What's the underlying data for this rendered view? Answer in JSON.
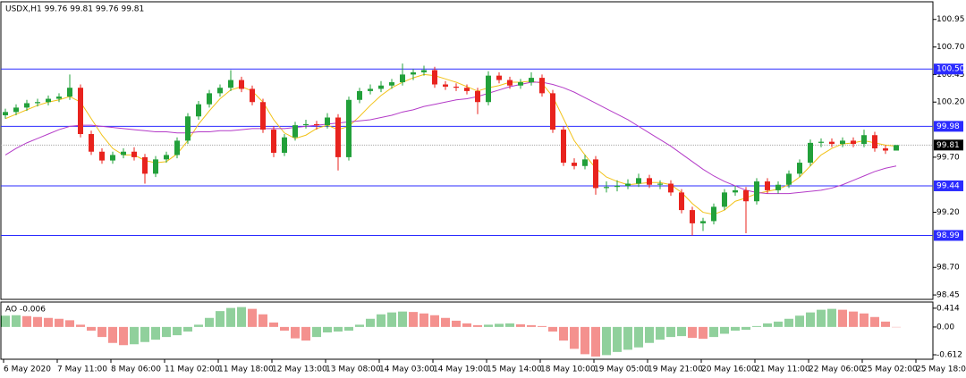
{
  "chart_data": {
    "type": "candlestick",
    "title": "USDX,H1  99.76 99.81 99.76 99.81",
    "ylim": [
      98.41,
      101.11
    ],
    "yticks": [
      100.95,
      {
        "value": 100.7,
        "label": "100.70"
      },
      100.45,
      {
        "value": 100.2,
        "label": "100.20"
      },
      {
        "value": 99.7,
        "label": "99.70"
      },
      {
        "value": 99.2,
        "label": "99.20"
      },
      {
        "value": 98.7,
        "label": "98.70"
      },
      98.45
    ],
    "levels": [
      {
        "value": 100.5,
        "label": "100.50"
      },
      99.98,
      99.44,
      98.99
    ],
    "level_color": "#2b2bff",
    "current_price": 99.81,
    "up_color": "#22a03a",
    "down_color": "#e8231e",
    "x_labels": [
      "6 May 2020",
      "7 May 11:00",
      "8 May 06:00",
      "11 May 02:00",
      "11 May 18:00",
      "12 May 13:00",
      "13 May 08:00",
      "14 May 03:00",
      "14 May 19:00",
      "15 May 14:00",
      "18 May 10:00",
      "19 May 05:00",
      "19 May 21:00",
      "20 May 16:00",
      "21 May 11:00",
      "22 May 06:00",
      "25 May 02:00",
      "25 May 18:00"
    ],
    "candles": [
      [
        100.08,
        100.14,
        100.05,
        100.11
      ],
      [
        100.11,
        100.18,
        100.08,
        100.15
      ],
      [
        100.15,
        100.22,
        100.12,
        100.19
      ],
      [
        100.19,
        100.23,
        100.16,
        100.2
      ],
      [
        100.2,
        100.26,
        100.17,
        100.23
      ],
      [
        100.23,
        100.28,
        100.2,
        100.25
      ],
      [
        100.25,
        100.45,
        100.22,
        100.33
      ],
      [
        100.33,
        100.36,
        99.88,
        99.91
      ],
      [
        99.91,
        99.94,
        99.72,
        99.75
      ],
      [
        99.75,
        99.78,
        99.64,
        99.67
      ],
      [
        99.67,
        99.75,
        99.64,
        99.72
      ],
      [
        99.72,
        99.78,
        99.69,
        99.75
      ],
      [
        99.75,
        99.79,
        99.67,
        99.7
      ],
      [
        99.7,
        99.73,
        99.46,
        99.55
      ],
      [
        99.55,
        99.71,
        99.52,
        99.68
      ],
      [
        99.68,
        99.75,
        99.65,
        99.72
      ],
      [
        99.72,
        99.88,
        99.69,
        99.85
      ],
      [
        99.85,
        100.1,
        99.82,
        100.07
      ],
      [
        100.07,
        100.21,
        100.04,
        100.18
      ],
      [
        100.18,
        100.31,
        100.15,
        100.28
      ],
      [
        100.28,
        100.36,
        100.25,
        100.33
      ],
      [
        100.33,
        100.49,
        100.3,
        100.4
      ],
      [
        100.4,
        100.43,
        100.29,
        100.32
      ],
      [
        100.32,
        100.35,
        100.17,
        100.2
      ],
      [
        100.2,
        100.23,
        99.92,
        99.95
      ],
      [
        99.95,
        99.98,
        99.7,
        99.74
      ],
      [
        99.74,
        99.91,
        99.71,
        99.88
      ],
      [
        99.88,
        100.02,
        99.85,
        99.99
      ],
      [
        99.99,
        100.04,
        99.96,
        100.0
      ],
      [
        100.0,
        100.03,
        99.95,
        99.99
      ],
      [
        99.99,
        100.1,
        99.96,
        100.06
      ],
      [
        100.06,
        100.09,
        99.58,
        99.7
      ],
      [
        99.7,
        100.25,
        99.67,
        100.22
      ],
      [
        100.22,
        100.33,
        100.19,
        100.3
      ],
      [
        100.3,
        100.36,
        100.27,
        100.32
      ],
      [
        100.32,
        100.39,
        100.29,
        100.35
      ],
      [
        100.35,
        100.41,
        100.32,
        100.38
      ],
      [
        100.38,
        100.55,
        100.35,
        100.45
      ],
      [
        100.45,
        100.5,
        100.4,
        100.47
      ],
      [
        100.47,
        100.53,
        100.44,
        100.49
      ],
      [
        100.49,
        100.52,
        100.33,
        100.36
      ],
      [
        100.36,
        100.39,
        100.31,
        100.34
      ],
      [
        100.34,
        100.37,
        100.3,
        100.33
      ],
      [
        100.33,
        100.36,
        100.27,
        100.3
      ],
      [
        100.3,
        100.33,
        100.09,
        100.2
      ],
      [
        100.2,
        100.48,
        100.17,
        100.44
      ],
      [
        100.44,
        100.47,
        100.37,
        100.4
      ],
      [
        100.4,
        100.43,
        100.32,
        100.35
      ],
      [
        100.35,
        100.41,
        100.32,
        100.38
      ],
      [
        100.38,
        100.47,
        100.35,
        100.42
      ],
      [
        100.42,
        100.45,
        100.25,
        100.28
      ],
      [
        100.28,
        100.31,
        99.92,
        99.95
      ],
      [
        99.95,
        99.98,
        99.62,
        99.65
      ],
      [
        99.65,
        99.69,
        99.59,
        99.62
      ],
      [
        99.62,
        99.72,
        99.59,
        99.68
      ],
      [
        99.68,
        99.71,
        99.36,
        99.42
      ],
      [
        99.42,
        99.48,
        99.38,
        99.43
      ],
      [
        99.43,
        99.49,
        99.39,
        99.44
      ],
      [
        99.44,
        99.5,
        99.41,
        99.46
      ],
      [
        99.46,
        99.55,
        99.43,
        99.51
      ],
      [
        99.51,
        99.54,
        99.42,
        99.45
      ],
      [
        99.45,
        99.49,
        99.41,
        99.46
      ],
      [
        99.46,
        99.49,
        99.35,
        99.38
      ],
      [
        99.38,
        99.41,
        99.19,
        99.22
      ],
      [
        99.22,
        99.25,
        98.99,
        99.1
      ],
      [
        99.1,
        99.15,
        99.03,
        99.12
      ],
      [
        99.12,
        99.28,
        99.09,
        99.25
      ],
      [
        99.25,
        99.41,
        99.22,
        99.38
      ],
      [
        99.38,
        99.44,
        99.35,
        99.4
      ],
      [
        99.4,
        99.43,
        99.01,
        99.3
      ],
      [
        99.3,
        99.51,
        99.27,
        99.48
      ],
      [
        99.48,
        99.51,
        99.37,
        99.4
      ],
      [
        99.4,
        99.48,
        99.37,
        99.45
      ],
      [
        99.45,
        99.58,
        99.42,
        99.55
      ],
      [
        99.55,
        99.68,
        99.52,
        99.65
      ],
      [
        99.65,
        99.86,
        99.62,
        99.83
      ],
      [
        99.83,
        99.87,
        99.79,
        99.84
      ],
      [
        99.84,
        99.87,
        99.79,
        99.82
      ],
      [
        99.82,
        99.88,
        99.79,
        99.85
      ],
      [
        99.85,
        99.88,
        99.79,
        99.82
      ],
      [
        99.82,
        99.95,
        99.79,
        99.9
      ],
      [
        99.9,
        99.93,
        99.75,
        99.78
      ],
      [
        99.78,
        99.81,
        99.73,
        99.76
      ],
      [
        99.76,
        99.81,
        99.76,
        99.81
      ]
    ],
    "lines": [
      {
        "color": "#f2c218",
        "values": [
          100.05,
          100.09,
          100.13,
          100.17,
          100.2,
          100.22,
          100.25,
          100.2,
          100.05,
          99.9,
          99.78,
          99.72,
          99.72,
          99.67,
          99.65,
          99.66,
          99.73,
          99.85,
          100.0,
          100.12,
          100.23,
          100.31,
          100.34,
          100.3,
          100.2,
          100.04,
          99.92,
          99.87,
          99.9,
          99.96,
          99.99,
          99.95,
          99.98,
          100.07,
          100.17,
          100.26,
          100.33,
          100.38,
          100.42,
          100.45,
          100.44,
          100.41,
          100.38,
          100.34,
          100.3,
          100.33,
          100.35,
          100.38,
          100.38,
          100.39,
          100.37,
          100.25,
          100.05,
          99.85,
          99.72,
          99.6,
          99.52,
          99.48,
          99.45,
          99.46,
          99.47,
          99.47,
          99.45,
          99.38,
          99.28,
          99.2,
          99.18,
          99.22,
          99.3,
          99.33,
          99.37,
          99.39,
          99.41,
          99.45,
          99.52,
          99.62,
          99.72,
          99.78,
          99.82,
          99.83,
          99.85,
          99.83,
          99.81,
          99.8
        ]
      },
      {
        "color": "#b43cc8",
        "values": [
          99.72,
          99.78,
          99.83,
          99.87,
          99.91,
          99.95,
          99.98,
          99.99,
          99.99,
          99.98,
          99.97,
          99.96,
          99.95,
          99.94,
          99.93,
          99.93,
          99.92,
          99.92,
          99.93,
          99.93,
          99.94,
          99.94,
          99.95,
          99.96,
          99.96,
          99.96,
          99.96,
          99.97,
          99.98,
          99.99,
          100.0,
          100.01,
          100.02,
          100.03,
          100.04,
          100.06,
          100.08,
          100.11,
          100.13,
          100.16,
          100.18,
          100.2,
          100.22,
          100.23,
          100.25,
          100.28,
          100.31,
          100.34,
          100.36,
          100.38,
          100.38,
          100.36,
          100.33,
          100.29,
          100.24,
          100.19,
          100.14,
          100.09,
          100.04,
          99.98,
          99.92,
          99.86,
          99.8,
          99.73,
          99.66,
          99.59,
          99.53,
          99.48,
          99.44,
          99.4,
          99.38,
          99.37,
          99.37,
          99.37,
          99.38,
          99.39,
          99.4,
          99.42,
          99.45,
          99.49,
          99.53,
          99.57,
          99.6,
          99.62
        ]
      }
    ],
    "ao": {
      "title": "AO -0.006",
      "ylim": [
        -0.71,
        0.55
      ],
      "yticks": [
        0.414,
        {
          "value": 0,
          "label": "0.00"
        },
        -0.612
      ],
      "values": [
        0.25,
        0.26,
        0.24,
        0.22,
        0.2,
        0.18,
        0.15,
        0.05,
        -0.08,
        -0.22,
        -0.35,
        -0.4,
        -0.38,
        -0.33,
        -0.28,
        -0.22,
        -0.18,
        -0.1,
        0.05,
        0.2,
        0.35,
        0.42,
        0.44,
        0.4,
        0.28,
        0.1,
        -0.08,
        -0.25,
        -0.3,
        -0.22,
        -0.12,
        -0.1,
        -0.08,
        0.05,
        0.18,
        0.28,
        0.32,
        0.34,
        0.33,
        0.3,
        0.26,
        0.2,
        0.14,
        0.08,
        0.04,
        0.05,
        0.07,
        0.08,
        0.06,
        0.04,
        0.02,
        -0.1,
        -0.3,
        -0.48,
        -0.6,
        -0.65,
        -0.62,
        -0.55,
        -0.5,
        -0.45,
        -0.35,
        -0.28,
        -0.22,
        -0.2,
        -0.24,
        -0.26,
        -0.22,
        -0.15,
        -0.08,
        -0.06,
        0.02,
        0.08,
        0.12,
        0.18,
        0.25,
        0.32,
        0.38,
        0.4,
        0.38,
        0.34,
        0.3,
        0.22,
        0.12,
        -0.006
      ]
    }
  }
}
